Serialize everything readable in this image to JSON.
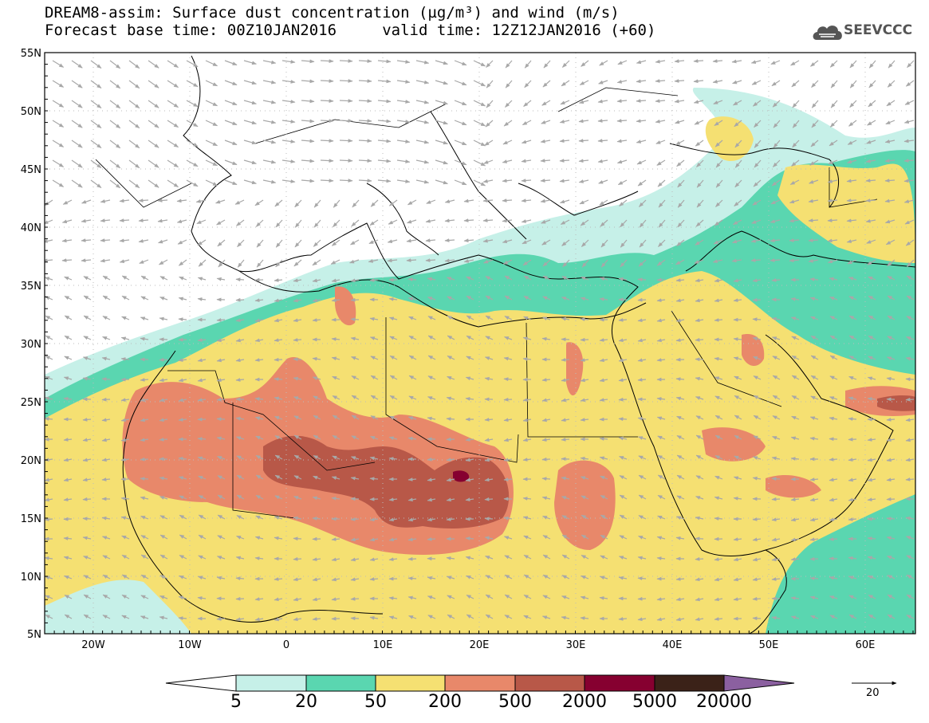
{
  "title": {
    "line1": "DREAM8-assim: Surface dust concentration (µg/m³) and wind (m/s)",
    "line2": "Forecast base time: 00Z10JAN2016     valid time: 12Z12JAN2016 (+60)"
  },
  "logo": {
    "text": "SEEVCCC",
    "icon": "cloud-logo-icon",
    "color": "#555555"
  },
  "axes": {
    "lat_labels": [
      "55N",
      "50N",
      "45N",
      "40N",
      "35N",
      "30N",
      "25N",
      "20N",
      "15N",
      "10N",
      "5N"
    ],
    "lon_labels": [
      "20W",
      "10W",
      "0",
      "10E",
      "20E",
      "30E",
      "40E",
      "50E",
      "60E"
    ],
    "lon_range": [
      -25,
      65
    ],
    "lat_range": [
      5,
      55
    ]
  },
  "colorbar": {
    "labels": [
      "5",
      "20",
      "50",
      "200",
      "500",
      "2000",
      "5000",
      "20000"
    ],
    "colors": [
      "#c6f0e8",
      "#5ad6b0",
      "#f5e072",
      "#e8886a",
      "#b85848",
      "#860030",
      "#3b2218"
    ],
    "over_color": "#8b60a0",
    "under_color": "#ffffff"
  },
  "wind_scale": {
    "label": "20"
  }
}
